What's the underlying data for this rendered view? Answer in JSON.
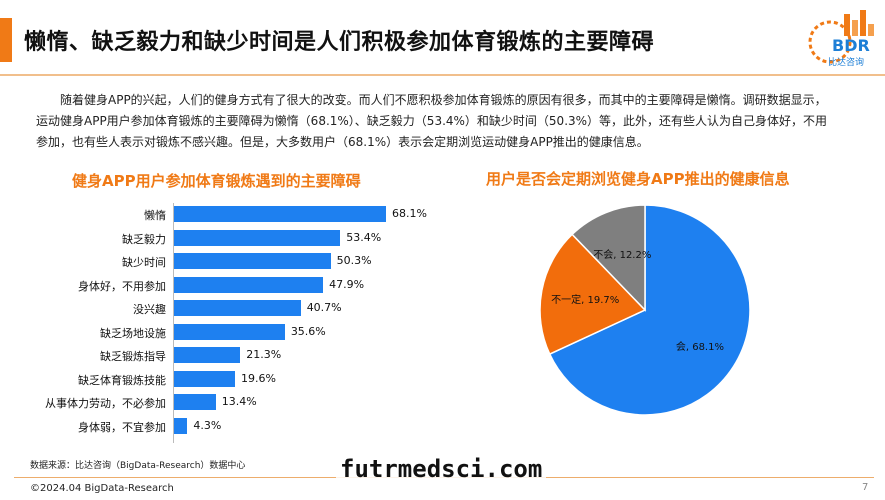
{
  "header": {
    "title": "懒惰、缺乏毅力和缺少时间是人们积极参加体育锻炼的主要障碍",
    "logo_text": "BDR",
    "logo_sub": "比达咨询"
  },
  "intro_text": "随着健身APP的兴起，人们的健身方式有了很大的改变。而人们不愿积极参加体育锻炼的原因有很多，而其中的主要障碍是懒惰。调研数据显示，运动健身APP用户参加体育锻炼的主要障碍为懒惰（68.1%）、缺乏毅力（53.4%）和缺少时间（50.3%）等，此外，还有些人认为自己身体好，不用参加，也有些人表示对锻炼不感兴趣。但是，大多数用户（68.1%）表示会定期浏览运动健身APP推出的健康信息。",
  "colors": {
    "accent": "#f07a16",
    "bar": "#1e80f0",
    "pie_yes": "#1e80f0",
    "pie_maybe": "#f26d0c",
    "pie_no": "#7f7f7f"
  },
  "chart_data": [
    {
      "type": "bar",
      "orientation": "horizontal",
      "title": "健身APP用户参加体育锻炼遇到的主要障碍",
      "categories": [
        "懒惰",
        "缺乏毅力",
        "缺少时间",
        "身体好，不用参加",
        "没兴趣",
        "缺乏场地设施",
        "缺乏锻炼指导",
        "缺乏体育锻炼技能",
        "从事体力劳动，不必参加",
        "身体弱，不宜参加"
      ],
      "values": [
        68.1,
        53.4,
        50.3,
        47.9,
        40.7,
        35.6,
        21.3,
        19.6,
        13.4,
        4.3
      ],
      "value_labels": [
        "68.1%",
        "53.4%",
        "50.3%",
        "47.9%",
        "40.7%",
        "35.6%",
        "21.3%",
        "19.6%",
        "13.4%",
        "4.3%"
      ],
      "unit": "%",
      "grid": false,
      "legend": "none"
    },
    {
      "type": "pie",
      "title": "用户是否会定期浏览健身APP推出的健康信息",
      "slices": [
        {
          "name": "会",
          "value": 68.1,
          "label": "会, 68.1%"
        },
        {
          "name": "不一定",
          "value": 19.7,
          "label": "不一定, 19.7%"
        },
        {
          "name": "不会",
          "value": 12.2,
          "label": "不会, 12.2%"
        }
      ],
      "legend": "none"
    }
  ],
  "footer": {
    "source": "数据来源：比达咨询（BigData-Research）数据中心",
    "copyright": "©2024.04 BigData-Research",
    "page_number": "7"
  },
  "watermark": "futrmedsci.com"
}
